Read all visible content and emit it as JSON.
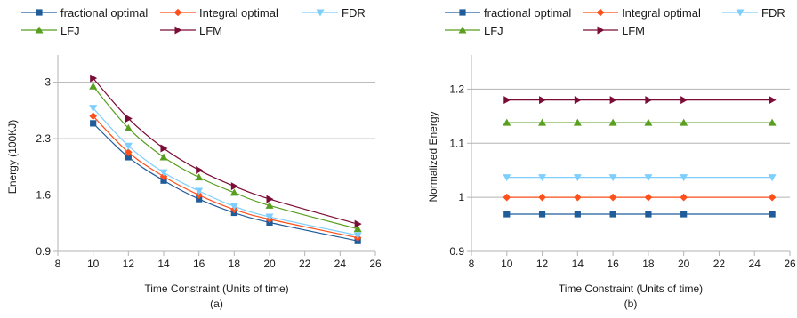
{
  "chart_data": [
    {
      "type": "line",
      "caption": "(a)",
      "xlabel": "Time Constraint (Units of time)",
      "ylabel": "Energy (100KJ)",
      "xlim": [
        8,
        26
      ],
      "ylim": [
        0.9,
        3.25
      ],
      "xticks": [
        "8",
        "10",
        "12",
        "14",
        "16",
        "18",
        "20",
        "22",
        "24",
        "26"
      ],
      "yticks": [
        "0.9",
        "1.6",
        "2.3",
        "3"
      ],
      "grid": "horizontal",
      "legend": "top",
      "x": [
        10,
        12,
        14,
        16,
        18,
        20,
        25
      ],
      "series": [
        {
          "name": "fractional optimal",
          "color": "#1f5c99",
          "marker": "square",
          "values": [
            2.49,
            2.07,
            1.78,
            1.55,
            1.38,
            1.26,
            1.03
          ]
        },
        {
          "name": "Integral optimal",
          "color": "#ff4f1a",
          "marker": "diamond",
          "values": [
            2.58,
            2.13,
            1.83,
            1.6,
            1.42,
            1.3,
            1.07
          ]
        },
        {
          "name": "FDR",
          "color": "#7ecfff",
          "marker": "triangle-down",
          "values": [
            2.68,
            2.21,
            1.88,
            1.65,
            1.46,
            1.33,
            1.1
          ]
        },
        {
          "name": "LFJ",
          "color": "#589e1f",
          "marker": "triangle-up",
          "values": [
            2.95,
            2.43,
            2.07,
            1.82,
            1.63,
            1.47,
            1.18
          ]
        },
        {
          "name": "LFM",
          "color": "#7b0c36",
          "marker": "triangle-right",
          "values": [
            3.05,
            2.55,
            2.18,
            1.91,
            1.71,
            1.55,
            1.24
          ]
        }
      ]
    },
    {
      "type": "line",
      "caption": "(b)",
      "xlabel": "Time Constraint (Units of time)",
      "ylabel": "Normalized Energy",
      "xlim": [
        8,
        26
      ],
      "ylim": [
        0.9,
        1.25
      ],
      "xticks": [
        "8",
        "10",
        "12",
        "14",
        "16",
        "18",
        "20",
        "22",
        "24",
        "26"
      ],
      "yticks": [
        "0.9",
        "1",
        "1.1",
        "1.2"
      ],
      "grid": "horizontal",
      "legend": "top",
      "x": [
        10,
        12,
        14,
        16,
        18,
        20,
        25
      ],
      "series": [
        {
          "name": "fractional optimal",
          "color": "#1f5c99",
          "marker": "square",
          "values": [
            0.969,
            0.969,
            0.969,
            0.969,
            0.969,
            0.969,
            0.969
          ]
        },
        {
          "name": "Integral optimal",
          "color": "#ff4f1a",
          "marker": "diamond",
          "values": [
            1.0,
            1.0,
            1.0,
            1.0,
            1.0,
            1.0,
            1.0
          ]
        },
        {
          "name": "FDR",
          "color": "#7ecfff",
          "marker": "triangle-down",
          "values": [
            1.037,
            1.037,
            1.037,
            1.037,
            1.037,
            1.037,
            1.037
          ]
        },
        {
          "name": "LFJ",
          "color": "#589e1f",
          "marker": "triangle-up",
          "values": [
            1.138,
            1.138,
            1.138,
            1.138,
            1.138,
            1.138,
            1.138
          ]
        },
        {
          "name": "LFM",
          "color": "#7b0c36",
          "marker": "triangle-right",
          "values": [
            1.18,
            1.18,
            1.18,
            1.18,
            1.18,
            1.18,
            1.18
          ]
        }
      ]
    }
  ]
}
